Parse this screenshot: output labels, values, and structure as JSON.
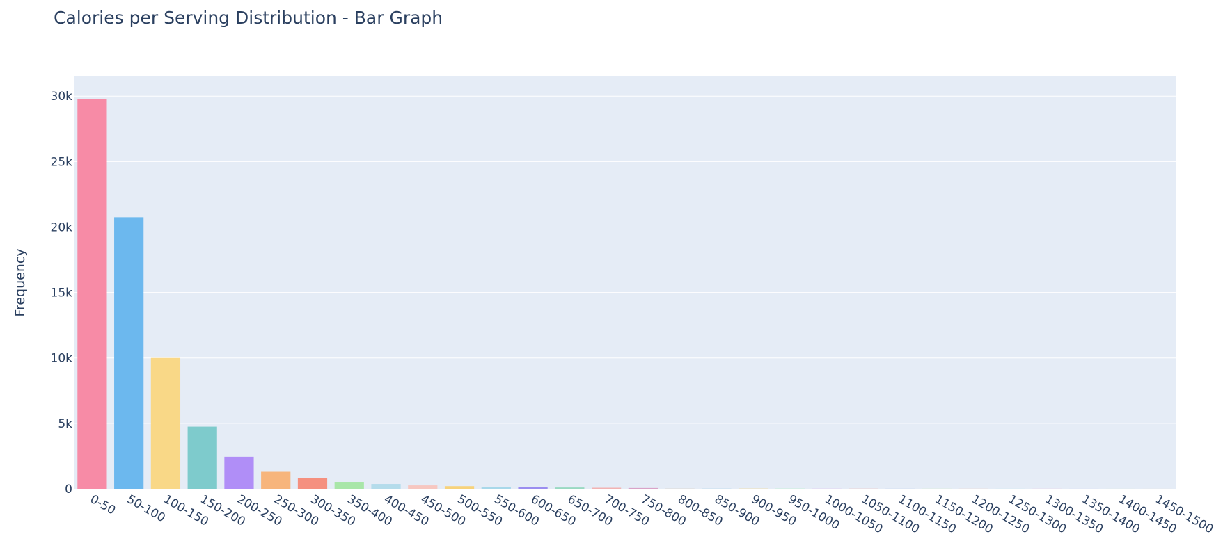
{
  "chart_data": {
    "type": "bar",
    "title": "Calories per Serving Distribution - Bar Graph",
    "xlabel": "",
    "ylabel": "Frequency",
    "ylim": [
      0,
      31500
    ],
    "yticks": [
      0,
      5000,
      10000,
      15000,
      20000,
      25000,
      30000
    ],
    "ytick_labels": [
      "0",
      "5k",
      "10k",
      "15k",
      "20k",
      "25k",
      "30k"
    ],
    "grid": true,
    "categories": [
      "0-50",
      "50-100",
      "100-150",
      "150-200",
      "200-250",
      "250-300",
      "300-350",
      "350-400",
      "400-450",
      "450-500",
      "500-550",
      "550-600",
      "600-650",
      "650-700",
      "700-750",
      "750-800",
      "800-850",
      "850-900",
      "900-950",
      "950-1000",
      "1000-1050",
      "1050-1100",
      "1100-1150",
      "1150-1200",
      "1200-1250",
      "1250-1300",
      "1300-1350",
      "1350-1400",
      "1400-1450",
      "1450-1500"
    ],
    "values": [
      29800,
      20750,
      10000,
      4750,
      2450,
      1300,
      800,
      530,
      370,
      260,
      200,
      150,
      130,
      100,
      80,
      60,
      40,
      30,
      25,
      20,
      15,
      15,
      12,
      10,
      10,
      8,
      8,
      6,
      6,
      5
    ],
    "colors": [
      "#f78ba6",
      "#6cb8ee",
      "#f9d887",
      "#7ecbcc",
      "#b08ef7",
      "#f7b57c",
      "#f5907f",
      "#a8e6a8",
      "#b4dceb",
      "#f7c7c0",
      "#f7d27a",
      "#a8d8ea",
      "#9b8ef0",
      "#99d9c2",
      "#f2b3b3",
      "#d9a3c8",
      "#e0e0e0",
      "#c9e0f0",
      "#f0e0b0",
      "#c0f0d0",
      "#e0c0f0",
      "#f0c0c0",
      "#c0d0f0",
      "#d0f0c0",
      "#f0d0c0",
      "#c0f0f0",
      "#f0c0e0",
      "#d0d0f0",
      "#e0f0d0",
      "#f0e0d0"
    ],
    "plot_bg": "#e5ecf6",
    "grid_color": "#ffffff",
    "text_color": "#2a3f5f"
  }
}
